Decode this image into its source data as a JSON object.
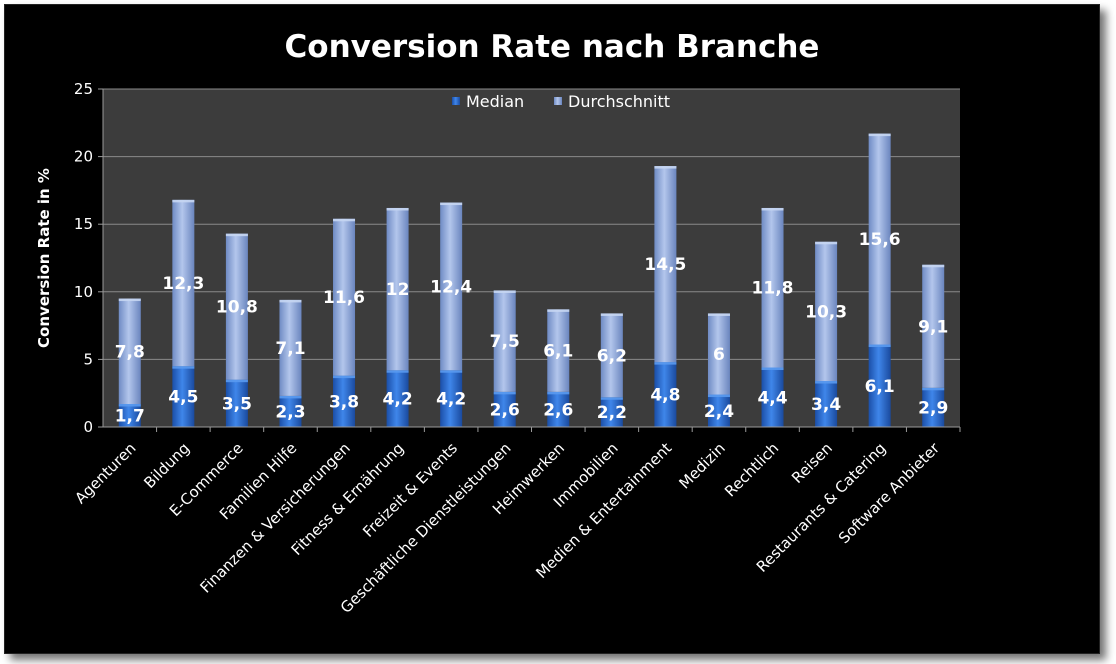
{
  "chart_data": {
    "type": "bar",
    "stacked": true,
    "title": "Conversion Rate nach Branche",
    "ylabel": "Conversion Rate in  %",
    "xlabel": "",
    "ylim": [
      0,
      25
    ],
    "yticks": [
      "0",
      "5",
      "10",
      "15",
      "20",
      "25"
    ],
    "grid": true,
    "legend_position": "top-center",
    "categories": [
      "Agenturen",
      "Bildung",
      "E-Commerce",
      "Familien Hilfe",
      "Finanzen & Versicherungen",
      "Fitness & Ernährung",
      "Freizeit & Events",
      "Geschäftliche Dienstleistungen",
      "Heimwerken",
      "Immobilien",
      "Medien & Entertainment",
      "Medizin",
      "Rechtlich",
      "Reisen",
      "Restaurants & Catering",
      "Software Anbieter"
    ],
    "series": [
      {
        "name": "Median",
        "color": "#2e6fd6",
        "values": [
          1.7,
          4.5,
          3.5,
          2.3,
          3.8,
          4.2,
          4.2,
          2.6,
          2.6,
          2.2,
          4.8,
          2.4,
          4.4,
          3.4,
          6.1,
          2.9
        ],
        "labels": [
          "1,7",
          "4,5",
          "3,5",
          "2,3",
          "3,8",
          "4,2",
          "4,2",
          "2,6",
          "2,6",
          "2,2",
          "4,8",
          "2,4",
          "4,4",
          "3,4",
          "6,1",
          "2,9"
        ]
      },
      {
        "name": "Durchschnitt",
        "color": "#8ea6d8",
        "values": [
          7.8,
          12.3,
          10.8,
          7.1,
          11.6,
          12,
          12.4,
          7.5,
          6.1,
          6.2,
          14.5,
          6,
          11.8,
          10.3,
          15.6,
          9.1
        ],
        "labels": [
          "7,8",
          "12,3",
          "10,8",
          "7,1",
          "11,6",
          "12",
          "12,4",
          "7,5",
          "6,1",
          "6,2",
          "14,5",
          "6",
          "11,8",
          "10,3",
          "15,6",
          "9,1"
        ]
      }
    ]
  }
}
